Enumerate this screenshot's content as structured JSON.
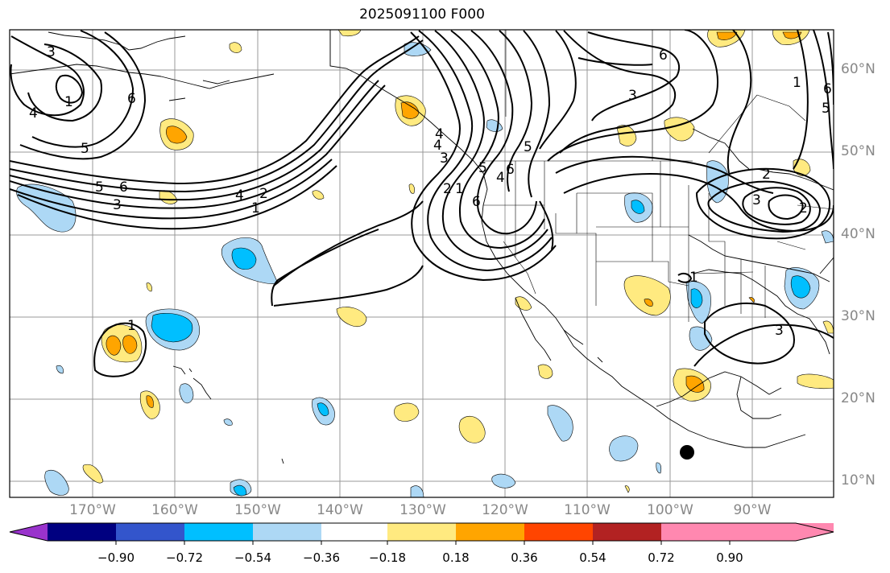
{
  "title": "2025091100 F000",
  "lat_labels": [
    "60°N",
    "50°N",
    "40°N",
    "30°N",
    "20°N",
    "10°N"
  ],
  "lon_labels": [
    "170°W",
    "160°W",
    "150°W",
    "140°W",
    "130°W",
    "120°W",
    "110°W",
    "100°W",
    "90°W"
  ],
  "colorbar": {
    "ticks": [
      "−0.90",
      "−0.72",
      "−0.54",
      "−0.36",
      "−0.18",
      "0.18",
      "0.36",
      "0.54",
      "0.72",
      "0.90"
    ],
    "colors": [
      "#9933cc",
      "#000080",
      "#3355cc",
      "#00bfff",
      "#add8f5",
      "#ffffff",
      "#ffea80",
      "#ffa500",
      "#ff4500",
      "#b22222",
      "#ff88b0"
    ]
  },
  "contour_labels": [
    "3",
    "1",
    "4",
    "5",
    "6",
    "5",
    "3",
    "4",
    "1",
    "2",
    "6",
    "5",
    "4",
    "3",
    "2",
    "1",
    "5",
    "6",
    "6",
    "3",
    "2",
    "3",
    "6",
    "1",
    "3",
    "4",
    "2",
    "1",
    "5",
    "6",
    "4",
    "1"
  ]
}
